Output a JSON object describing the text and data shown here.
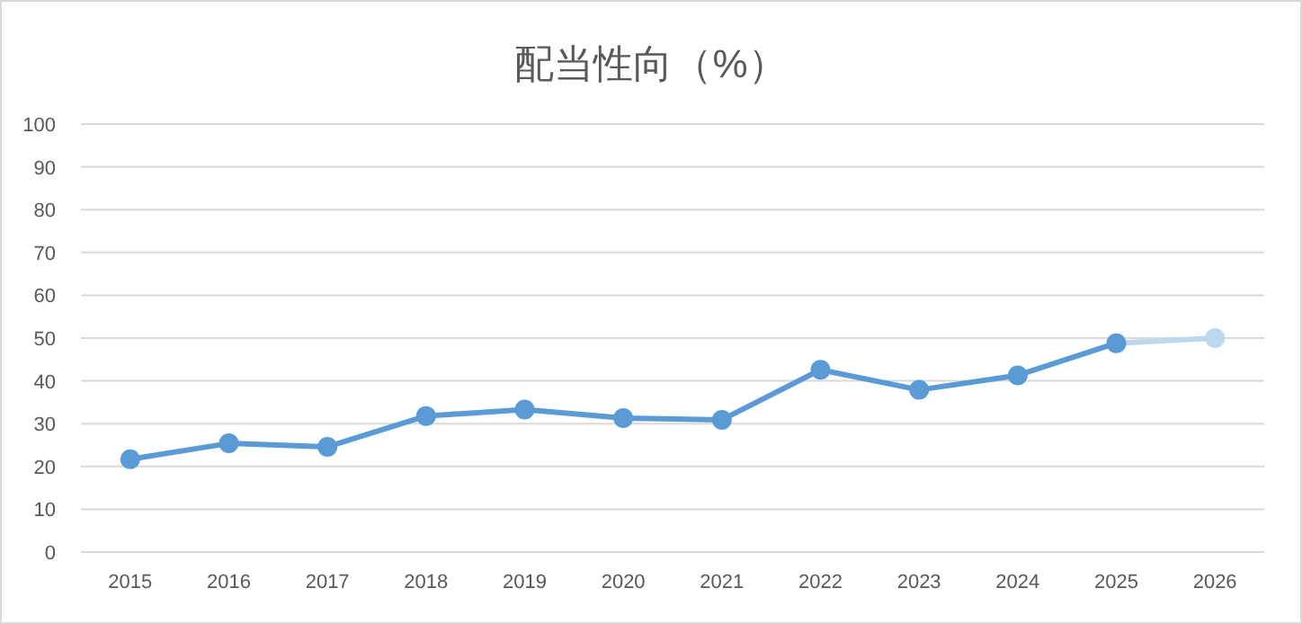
{
  "chart_data": {
    "type": "line",
    "title": "配当性向（%）",
    "categories": [
      "2015",
      "2016",
      "2017",
      "2018",
      "2019",
      "2020",
      "2021",
      "2022",
      "2023",
      "2024",
      "2025",
      "2026"
    ],
    "series": [
      {
        "color": "#bdd7ee",
        "values": [
          null,
          null,
          null,
          null,
          null,
          null,
          null,
          null,
          null,
          null,
          48.8,
          50
        ]
      },
      {
        "color": "#5b9bd5",
        "values": [
          21.7,
          25.4,
          24.6,
          31.8,
          33.3,
          31.3,
          30.9,
          42.6,
          37.9,
          41.3,
          48.8,
          null
        ]
      }
    ],
    "ylim": [
      0,
      100
    ],
    "yticks": [
      0,
      10,
      20,
      30,
      40,
      50,
      60,
      70,
      80,
      90,
      100
    ],
    "grid": "y",
    "marker": "circle",
    "line_style": "solid"
  }
}
